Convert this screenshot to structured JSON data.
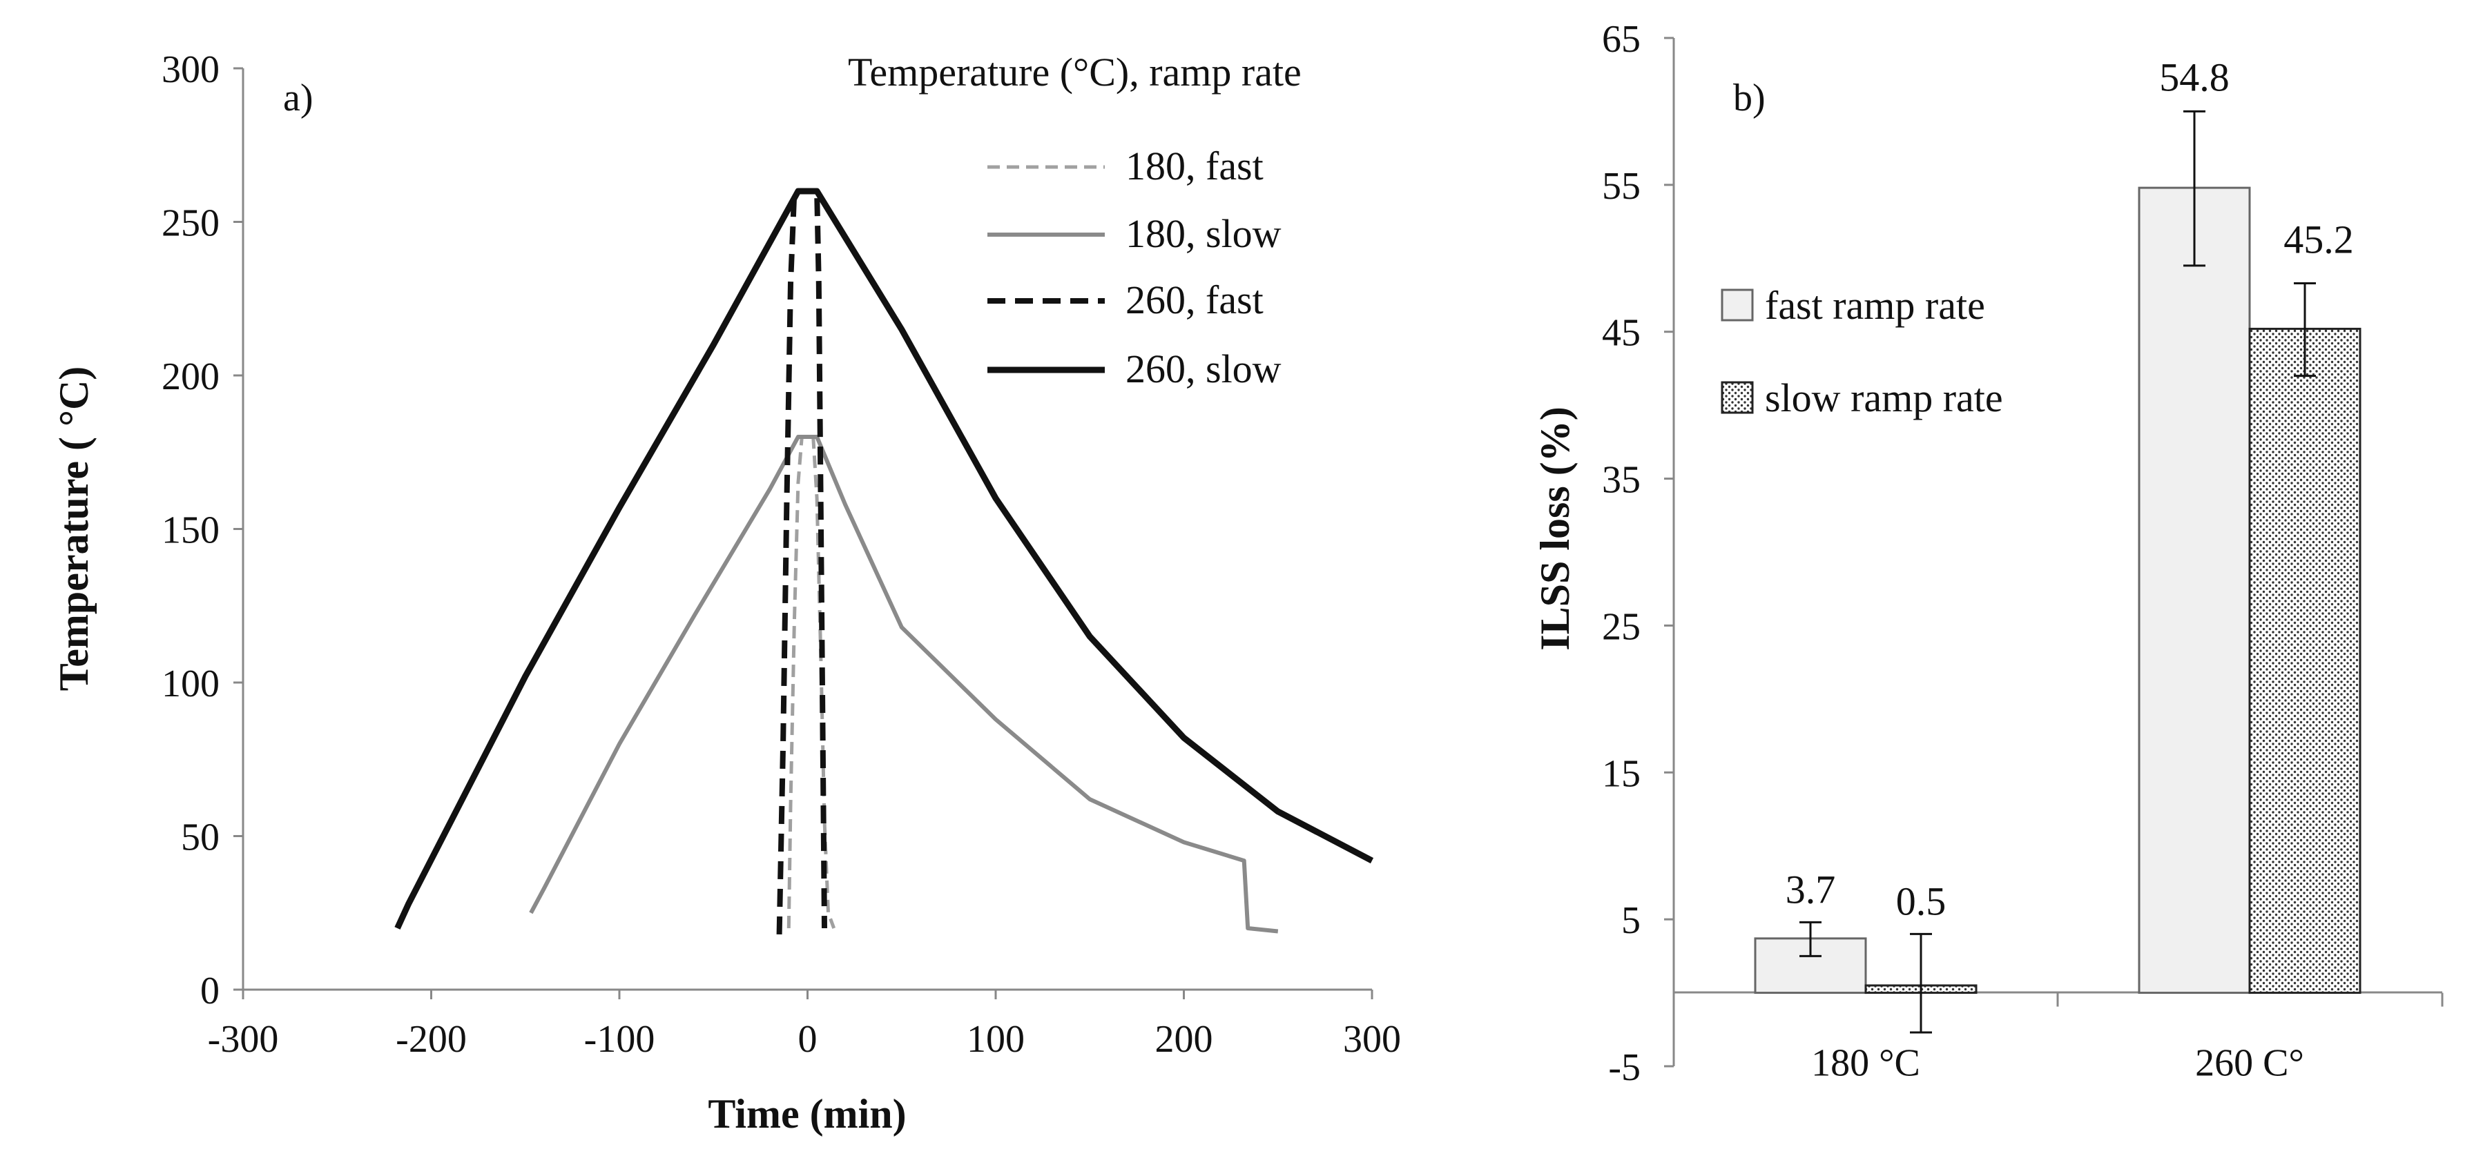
{
  "figure": {
    "colors": {
      "black": "#111111",
      "gray": "#8a8a8a",
      "light_gray": "#a0a0a0",
      "bar_fill": "#f0f0f0",
      "dot_fill": "#ffffff"
    }
  },
  "chart_data": [
    {
      "id": "a",
      "type": "line",
      "panel_label": "a)",
      "title": "",
      "xlabel": "Time (min)",
      "ylabel": "Temperature ( °C)",
      "xlim": [
        -300,
        300
      ],
      "ylim": [
        0,
        300
      ],
      "xticks": [
        "-300",
        "-200",
        "-100",
        "0",
        "100",
        "200",
        "300"
      ],
      "yticks": [
        "0",
        "50",
        "100",
        "150",
        "200",
        "250",
        "300"
      ],
      "legend_title": "Temperature (°C), ramp rate",
      "legend_position": "top-right",
      "series": [
        {
          "name": "180, fast",
          "style": "dashed-thin",
          "color": "#a0a0a0",
          "points": [
            [
              -10,
              20
            ],
            [
              -9,
              60
            ],
            [
              -7,
              120
            ],
            [
              -5,
              165
            ],
            [
              -3,
              180
            ],
            [
              3,
              180
            ],
            [
              5,
              160
            ],
            [
              7,
              110
            ],
            [
              9,
              55
            ],
            [
              11,
              25
            ],
            [
              14,
              20
            ]
          ]
        },
        {
          "name": "180, slow",
          "style": "solid",
          "color": "#8a8a8a",
          "points": [
            [
              -147,
              25
            ],
            [
              -140,
              33
            ],
            [
              -100,
              80
            ],
            [
              -60,
              122
            ],
            [
              -20,
              163
            ],
            [
              -5,
              180
            ],
            [
              5,
              180
            ],
            [
              20,
              158
            ],
            [
              50,
              118
            ],
            [
              100,
              88
            ],
            [
              150,
              62
            ],
            [
              200,
              48
            ],
            [
              232,
              42
            ],
            [
              234,
              20
            ],
            [
              250,
              19
            ]
          ]
        },
        {
          "name": "260, fast",
          "style": "dashed-thick",
          "color": "#111111",
          "points": [
            [
              -15,
              18
            ],
            [
              -13,
              80
            ],
            [
              -11,
              160
            ],
            [
              -9,
              230
            ],
            [
              -7,
              260
            ],
            [
              5,
              260
            ],
            [
              6,
              230
            ],
            [
              7,
              160
            ],
            [
              8,
              90
            ],
            [
              9,
              20
            ]
          ]
        },
        {
          "name": "260, slow",
          "style": "solid-thick",
          "color": "#111111",
          "points": [
            [
              -218,
              20
            ],
            [
              -212,
              28
            ],
            [
              -150,
              102
            ],
            [
              -100,
              157
            ],
            [
              -50,
              210
            ],
            [
              -5,
              260
            ],
            [
              5,
              260
            ],
            [
              50,
              215
            ],
            [
              100,
              160
            ],
            [
              150,
              115
            ],
            [
              200,
              82
            ],
            [
              250,
              58
            ],
            [
              300,
              42
            ]
          ]
        }
      ]
    },
    {
      "id": "b",
      "type": "bar",
      "panel_label": "b)",
      "title": "",
      "xlabel": "",
      "ylabel": "ILSS loss (%)",
      "ylim": [
        -5,
        65
      ],
      "yticks": [
        "-5",
        "5",
        "15",
        "25",
        "35",
        "45",
        "55",
        "65"
      ],
      "categories": [
        "180 °C",
        "260 C°"
      ],
      "legend_position": "upper-left",
      "series": [
        {
          "name": "fast ramp rate",
          "pattern": "plain",
          "values": [
            3.7,
            54.8
          ],
          "labels": [
            "3.7",
            "54.8"
          ],
          "error_low": [
            2.5,
            49.5
          ],
          "error_high": [
            4.8,
            60
          ]
        },
        {
          "name": "slow ramp rate",
          "pattern": "dotted",
          "values": [
            0.5,
            45.2
          ],
          "labels": [
            "0.5",
            "45.2"
          ],
          "error_low": [
            -2.7,
            42
          ],
          "error_high": [
            4,
            48.3
          ]
        }
      ]
    }
  ]
}
